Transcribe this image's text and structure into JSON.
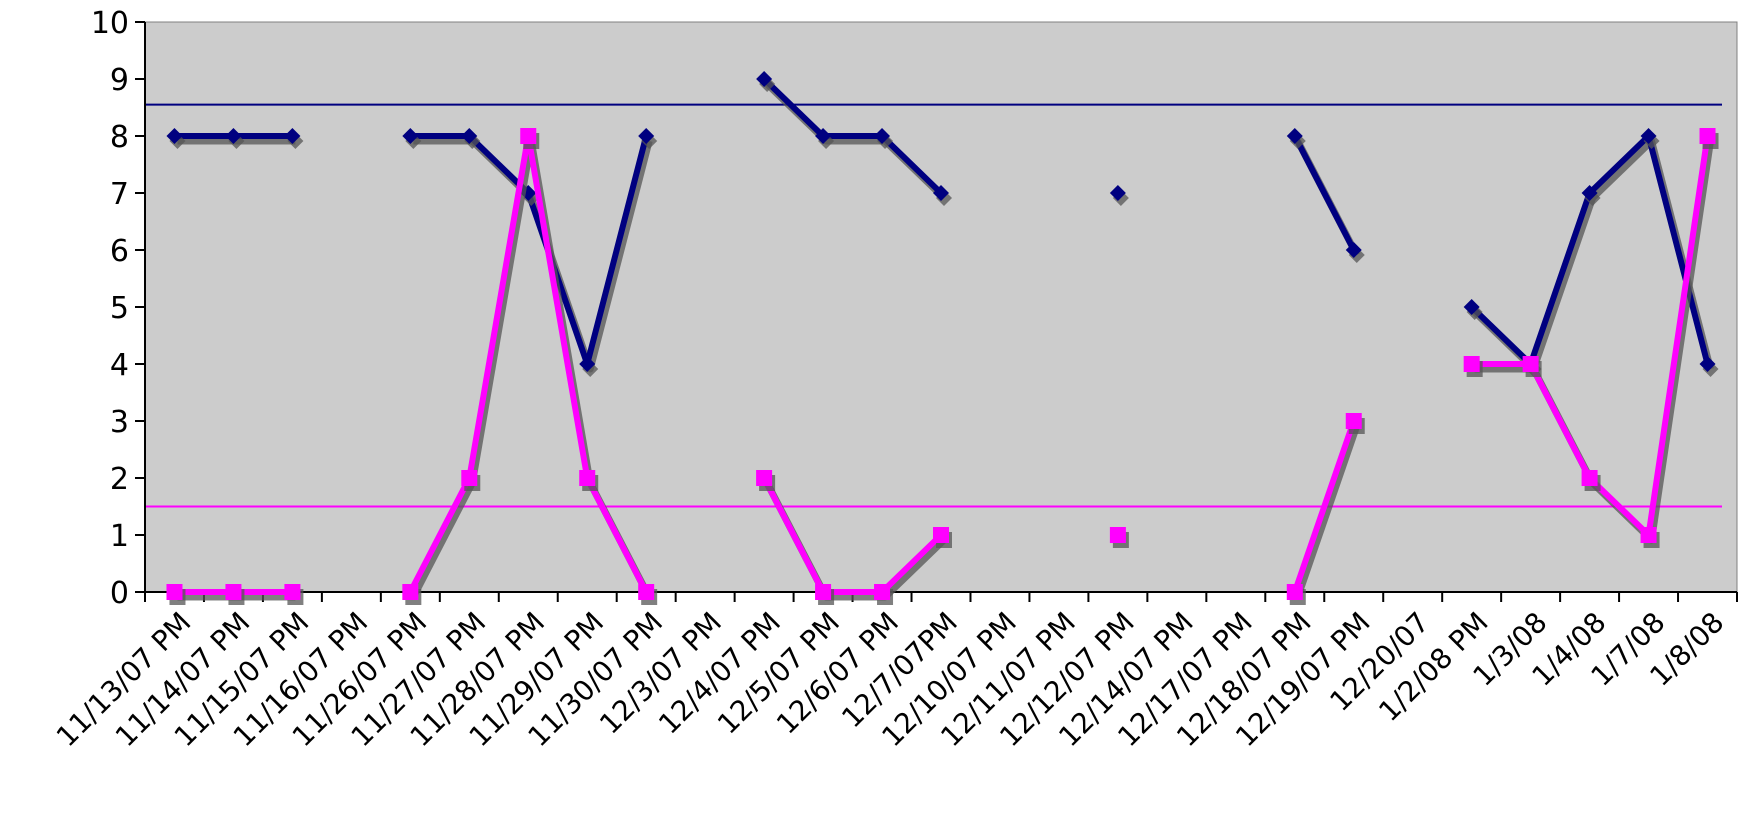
{
  "chart_data": {
    "type": "line",
    "title": "",
    "xlabel": "",
    "ylabel": "",
    "ylim": [
      0,
      10
    ],
    "yticks": [
      0,
      1,
      2,
      3,
      4,
      5,
      6,
      7,
      8,
      9,
      10
    ],
    "grid": false,
    "legend": "none",
    "plot_background": "#cccccc",
    "categories": [
      "11/13/07 PM",
      "11/14/07 PM",
      "11/15/07 PM",
      "11/16/07 PM",
      "11/26/07 PM",
      "11/27/07 PM",
      "11/28/07 PM",
      "11/29/07 PM",
      "11/30/07 PM",
      "12/3/07 PM",
      "12/4/07 PM",
      "12/5/07 PM",
      "12/6/07 PM",
      "12/7/07PM",
      "12/10/07 PM",
      "12/11/07 PM",
      "12/12/07 PM",
      "12/14/07 PM",
      "12/17/07 PM",
      "12/18/07 PM",
      "12/19/07 PM",
      "12/20/07",
      "1/2/08 PM",
      "1/3/08",
      "1/4/08",
      "1/7/08",
      "1/8/08"
    ],
    "series": [
      {
        "color": "#000080",
        "marker": "diamond",
        "values": [
          8,
          8,
          8,
          null,
          8,
          8,
          7,
          4,
          8,
          null,
          9,
          8,
          8,
          7,
          null,
          null,
          7,
          null,
          null,
          8,
          6,
          null,
          5,
          4,
          7,
          8,
          4
        ]
      },
      {
        "color": "#ff00ff",
        "marker": "square",
        "values": [
          0,
          0,
          0,
          null,
          0,
          2,
          8,
          2,
          0,
          null,
          2,
          0,
          0,
          1,
          null,
          null,
          1,
          null,
          null,
          0,
          3,
          null,
          4,
          4,
          2,
          1,
          8
        ]
      }
    ],
    "reference_lines": [
      {
        "value": 8.55,
        "color": "#000080"
      },
      {
        "value": 1.5,
        "color": "#ff00ff"
      }
    ]
  }
}
